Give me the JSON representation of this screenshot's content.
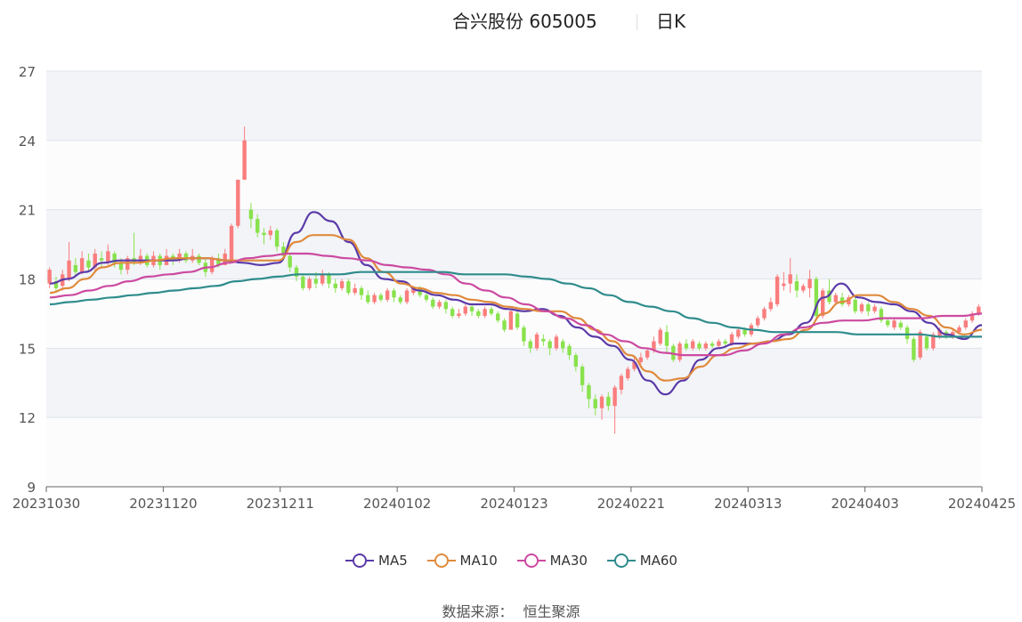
{
  "header": {
    "title": "合兴股份 605005",
    "period": "日K"
  },
  "legend": [
    {
      "label": "MA5",
      "color": "#5b3aa8"
    },
    {
      "label": "MA10",
      "color": "#e08a3c"
    },
    {
      "label": "MA30",
      "color": "#cc4aa0"
    },
    {
      "label": "MA60",
      "color": "#2f8c8c"
    }
  ],
  "source": {
    "label": "数据来源：",
    "value": "恒生聚源"
  },
  "colors": {
    "up": "#fa7d7d",
    "down": "#89e24c",
    "band": "#f2f4f8",
    "grid": "#dfe3ea"
  },
  "chart_data": {
    "type": "candlestick",
    "yticks": [
      "9",
      "12",
      "15",
      "18",
      "21",
      "24",
      "27"
    ],
    "ylim": [
      9,
      27
    ],
    "xticks": [
      "20231030",
      "20231120",
      "20231211",
      "20240102",
      "20240123",
      "20240221",
      "20240313",
      "20240403",
      "20240425"
    ],
    "candles": [
      [
        17.8,
        18.4,
        18.5,
        17.6
      ],
      [
        17.9,
        17.6,
        18.1,
        17.4
      ],
      [
        17.7,
        18.2,
        18.4,
        17.5
      ],
      [
        18.0,
        18.8,
        19.6,
        17.9
      ],
      [
        18.6,
        18.3,
        18.9,
        18.1
      ],
      [
        18.3,
        18.9,
        19.2,
        18.2
      ],
      [
        18.8,
        18.5,
        19.1,
        18.3
      ],
      [
        18.5,
        19.1,
        19.3,
        18.3
      ],
      [
        18.9,
        18.8,
        19.2,
        18.5
      ],
      [
        18.7,
        19.2,
        19.5,
        18.6
      ],
      [
        19.1,
        18.7,
        19.2,
        18.5
      ],
      [
        18.7,
        18.4,
        18.9,
        18.2
      ],
      [
        18.4,
        18.9,
        19.0,
        18.2
      ],
      [
        18.9,
        18.7,
        20.0,
        18.6
      ],
      [
        18.7,
        19.0,
        19.3,
        18.6
      ],
      [
        19.0,
        18.6,
        19.1,
        18.5
      ],
      [
        18.6,
        19.0,
        19.2,
        18.5
      ],
      [
        19.0,
        18.6,
        19.1,
        18.4
      ],
      [
        18.6,
        19.0,
        19.3,
        18.6
      ],
      [
        19.0,
        18.8,
        19.1,
        18.6
      ],
      [
        18.8,
        19.1,
        19.3,
        18.7
      ],
      [
        19.1,
        18.8,
        19.2,
        18.7
      ],
      [
        18.8,
        19.0,
        19.3,
        18.7
      ],
      [
        19.0,
        18.7,
        19.1,
        18.6
      ],
      [
        18.7,
        18.3,
        18.9,
        18.1
      ],
      [
        18.3,
        18.9,
        19.0,
        18.2
      ],
      [
        18.9,
        18.6,
        19.1,
        18.5
      ],
      [
        18.6,
        19.1,
        19.3,
        18.6
      ],
      [
        18.8,
        20.3,
        20.4,
        18.7
      ],
      [
        20.3,
        22.3,
        22.3,
        20.2
      ],
      [
        22.3,
        24.0,
        24.6,
        22.3
      ],
      [
        21.0,
        20.6,
        21.3,
        20.2
      ],
      [
        20.6,
        20.0,
        20.8,
        19.8
      ],
      [
        20.0,
        19.9,
        20.2,
        19.5
      ],
      [
        19.9,
        20.1,
        20.3,
        19.7
      ],
      [
        20.1,
        19.4,
        20.2,
        19.2
      ],
      [
        19.4,
        19.0,
        19.6,
        18.8
      ],
      [
        19.0,
        18.5,
        19.1,
        18.3
      ],
      [
        18.5,
        18.1,
        18.6,
        17.9
      ],
      [
        18.1,
        17.6,
        18.2,
        17.5
      ],
      [
        17.6,
        18.0,
        18.1,
        17.5
      ],
      [
        18.0,
        17.8,
        18.3,
        17.6
      ],
      [
        17.8,
        18.2,
        18.4,
        17.7
      ],
      [
        18.2,
        17.8,
        18.3,
        17.6
      ],
      [
        17.8,
        17.6,
        18.0,
        17.4
      ],
      [
        17.6,
        17.9,
        18.0,
        17.5
      ],
      [
        17.9,
        17.4,
        18.0,
        17.3
      ],
      [
        17.4,
        17.6,
        17.8,
        17.3
      ],
      [
        17.6,
        17.3,
        17.7,
        17.1
      ],
      [
        17.3,
        17.0,
        17.5,
        16.9
      ],
      [
        17.0,
        17.3,
        17.4,
        16.9
      ],
      [
        17.3,
        17.1,
        17.4,
        17.0
      ],
      [
        17.1,
        17.5,
        17.6,
        17.0
      ],
      [
        17.5,
        17.2,
        17.6,
        17.0
      ],
      [
        17.2,
        17.0,
        17.3,
        16.9
      ],
      [
        17.0,
        17.5,
        17.6,
        16.9
      ],
      [
        17.4,
        17.6,
        17.7,
        17.3
      ],
      [
        17.6,
        17.3,
        17.7,
        17.2
      ],
      [
        17.3,
        17.1,
        17.4,
        17.0
      ],
      [
        17.1,
        16.8,
        17.2,
        16.7
      ],
      [
        16.8,
        17.0,
        17.1,
        16.7
      ],
      [
        17.0,
        16.7,
        17.1,
        16.5
      ],
      [
        16.7,
        16.4,
        16.8,
        16.3
      ],
      [
        16.4,
        16.5,
        16.7,
        16.3
      ],
      [
        16.5,
        16.8,
        16.9,
        16.4
      ],
      [
        16.8,
        16.6,
        16.9,
        16.4
      ],
      [
        16.6,
        16.4,
        16.7,
        16.3
      ],
      [
        16.4,
        16.7,
        16.8,
        16.3
      ],
      [
        16.7,
        16.5,
        16.8,
        16.4
      ],
      [
        16.5,
        16.2,
        16.6,
        16.1
      ],
      [
        16.2,
        15.8,
        16.3,
        15.7
      ],
      [
        15.8,
        16.6,
        16.7,
        15.8
      ],
      [
        16.5,
        15.9,
        16.6,
        15.8
      ],
      [
        15.9,
        15.3,
        16.0,
        15.1
      ],
      [
        15.3,
        15.0,
        15.4,
        14.8
      ],
      [
        15.0,
        15.6,
        15.7,
        14.9
      ],
      [
        15.4,
        15.3,
        15.6,
        15.1
      ],
      [
        15.3,
        15.0,
        15.4,
        14.7
      ],
      [
        15.0,
        15.5,
        15.6,
        14.9
      ],
      [
        15.3,
        15.0,
        15.4,
        14.8
      ],
      [
        15.1,
        14.7,
        15.2,
        14.5
      ],
      [
        14.7,
        14.2,
        14.8,
        14.0
      ],
      [
        14.2,
        13.4,
        14.3,
        13.1
      ],
      [
        13.4,
        12.8,
        13.5,
        12.4
      ],
      [
        12.8,
        12.4,
        13.0,
        12.1
      ],
      [
        12.4,
        12.9,
        13.0,
        11.9
      ],
      [
        12.9,
        12.5,
        13.1,
        12.3
      ],
      [
        12.5,
        13.3,
        13.4,
        11.3
      ],
      [
        13.2,
        13.8,
        13.9,
        13.0
      ],
      [
        13.7,
        14.1,
        14.2,
        13.6
      ],
      [
        14.1,
        14.4,
        14.6,
        14.0
      ],
      [
        14.4,
        14.6,
        14.8,
        14.3
      ],
      [
        14.6,
        14.9,
        15.0,
        14.5
      ],
      [
        14.9,
        15.3,
        15.5,
        14.8
      ],
      [
        15.2,
        15.8,
        15.9,
        15.1
      ],
      [
        15.7,
        15.1,
        16.0,
        14.8
      ],
      [
        15.1,
        14.5,
        15.2,
        14.4
      ],
      [
        14.5,
        15.2,
        15.3,
        14.4
      ],
      [
        15.2,
        15.0,
        15.4,
        14.9
      ],
      [
        15.0,
        15.3,
        15.4,
        14.9
      ],
      [
        15.2,
        15.0,
        15.3,
        14.9
      ],
      [
        15.0,
        15.2,
        15.3,
        14.9
      ],
      [
        15.2,
        15.1,
        15.3,
        15.0
      ],
      [
        15.1,
        15.3,
        15.4,
        15.0
      ],
      [
        15.3,
        15.2,
        15.4,
        15.1
      ],
      [
        15.2,
        15.6,
        15.7,
        15.1
      ],
      [
        15.5,
        15.8,
        15.9,
        15.4
      ],
      [
        15.8,
        15.6,
        15.9,
        15.5
      ],
      [
        15.6,
        16.0,
        16.1,
        15.5
      ],
      [
        16.0,
        16.3,
        16.4,
        15.9
      ],
      [
        16.3,
        16.7,
        16.8,
        16.2
      ],
      [
        16.7,
        17.0,
        17.2,
        16.6
      ],
      [
        16.9,
        18.1,
        18.2,
        16.8
      ],
      [
        17.7,
        17.8,
        18.3,
        17.5
      ],
      [
        17.8,
        18.2,
        18.9,
        17.4
      ],
      [
        17.9,
        17.5,
        18.2,
        17.2
      ],
      [
        17.5,
        17.7,
        17.8,
        17.4
      ],
      [
        17.6,
        18.0,
        18.4,
        17.2
      ],
      [
        18.0,
        16.4,
        18.1,
        16.3
      ],
      [
        16.4,
        17.5,
        17.6,
        16.3
      ],
      [
        17.5,
        17.0,
        18.0,
        16.9
      ],
      [
        17.0,
        17.3,
        17.4,
        16.9
      ],
      [
        17.2,
        16.9,
        17.4,
        16.8
      ],
      [
        16.9,
        17.2,
        17.3,
        16.8
      ],
      [
        17.1,
        16.6,
        17.2,
        16.5
      ],
      [
        16.6,
        16.9,
        17.0,
        16.5
      ],
      [
        16.9,
        16.6,
        17.0,
        16.4
      ],
      [
        16.6,
        16.8,
        16.9,
        16.5
      ],
      [
        16.7,
        16.2,
        16.8,
        16.1
      ],
      [
        16.2,
        16.0,
        16.3,
        15.9
      ],
      [
        15.9,
        16.2,
        16.3,
        15.8
      ],
      [
        16.1,
        15.9,
        16.2,
        15.8
      ],
      [
        15.9,
        15.4,
        16.0,
        15.2
      ],
      [
        15.4,
        14.5,
        15.5,
        14.4
      ],
      [
        14.6,
        15.7,
        15.8,
        14.5
      ],
      [
        15.5,
        15.0,
        15.6,
        14.9
      ],
      [
        15.0,
        15.6,
        15.7,
        14.9
      ],
      [
        15.5,
        15.8,
        15.9,
        15.4
      ],
      [
        15.7,
        15.5,
        15.8,
        15.4
      ],
      [
        15.5,
        15.7,
        15.8,
        15.4
      ],
      [
        15.7,
        15.9,
        16.0,
        15.6
      ],
      [
        15.9,
        16.2,
        16.3,
        15.8
      ],
      [
        16.2,
        16.5,
        16.6,
        16.1
      ],
      [
        16.5,
        16.8,
        16.9,
        16.4
      ]
    ],
    "series": [
      {
        "name": "MA5",
        "color": "#5b3aa8",
        "values": [
          17.8,
          18.0,
          18.3,
          18.7,
          18.8,
          18.8,
          18.8,
          18.8,
          18.9,
          18.9,
          18.8,
          18.7,
          18.6,
          18.7,
          20.0,
          20.9,
          20.5,
          19.6,
          18.6,
          18.0,
          17.9,
          17.5,
          17.3,
          17.1,
          16.9,
          16.9,
          16.7,
          16.6,
          16.7,
          16.4,
          15.9,
          15.5,
          15.1,
          14.5,
          13.6,
          13.0,
          13.6,
          14.5,
          15.0,
          15.2,
          15.2,
          15.3,
          15.6,
          16.1,
          17.2,
          17.8,
          17.2,
          17.0,
          16.9,
          16.6,
          16.1,
          15.6,
          15.4,
          16.0
        ]
      },
      {
        "name": "MA10",
        "color": "#e08a3c",
        "values": [
          17.4,
          17.6,
          18.0,
          18.5,
          18.7,
          18.7,
          18.8,
          18.9,
          18.9,
          18.9,
          18.8,
          18.8,
          18.8,
          18.8,
          19.6,
          19.9,
          19.9,
          19.7,
          18.9,
          18.3,
          17.8,
          17.6,
          17.4,
          17.3,
          17.1,
          17.0,
          16.8,
          16.7,
          16.6,
          16.6,
          16.3,
          15.8,
          15.3,
          14.7,
          14.0,
          13.6,
          13.7,
          14.2,
          14.7,
          15.0,
          15.2,
          15.3,
          15.4,
          15.8,
          16.5,
          17.0,
          17.3,
          17.3,
          17.0,
          16.7,
          16.4,
          15.9,
          15.6,
          15.8
        ]
      },
      {
        "name": "MA30",
        "color": "#cc4aa0",
        "values": [
          17.2,
          17.3,
          17.5,
          17.7,
          17.9,
          18.1,
          18.2,
          18.3,
          18.5,
          18.7,
          18.9,
          19.0,
          19.1,
          19.1,
          19.0,
          18.9,
          18.8,
          18.6,
          18.5,
          18.4,
          18.2,
          17.8,
          17.5,
          17.2,
          16.9,
          16.6,
          16.3,
          16.0,
          15.6,
          15.3,
          15.0,
          14.8,
          14.7,
          14.7,
          14.7,
          14.9,
          15.2,
          15.6,
          15.9,
          16.1,
          16.2,
          16.2,
          16.3,
          16.3,
          16.3,
          16.4,
          16.4,
          16.5
        ]
      },
      {
        "name": "MA60",
        "color": "#2f8c8c",
        "values": [
          16.9,
          17.0,
          17.1,
          17.2,
          17.3,
          17.4,
          17.5,
          17.6,
          17.7,
          17.9,
          18.0,
          18.1,
          18.2,
          18.2,
          18.2,
          18.3,
          18.3,
          18.3,
          18.3,
          18.3,
          18.2,
          18.2,
          18.2,
          18.1,
          18.0,
          17.8,
          17.6,
          17.3,
          17.0,
          16.8,
          16.6,
          16.3,
          16.1,
          15.9,
          15.8,
          15.7,
          15.7,
          15.7,
          15.7,
          15.6,
          15.6,
          15.6,
          15.6,
          15.5,
          15.5,
          15.5
        ]
      }
    ]
  }
}
